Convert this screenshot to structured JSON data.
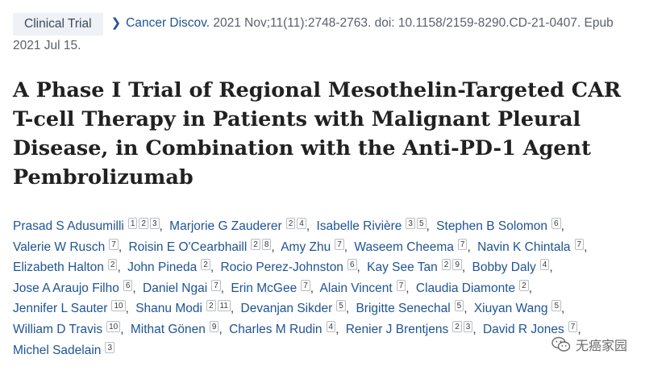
{
  "badge": "Clinical Trial",
  "journal": "Cancer Discov.",
  "citation": "2021 Nov;11(11):2748-2763. doi: 10.1158/2159-8290.CD-21-0407. Epub 2021 Jul 15.",
  "title": "A Phase I Trial of Regional Mesothelin-Targeted CAR T-cell Therapy in Patients with Malignant Pleural Disease, in Combination with the Anti-PD-1 Agent Pembrolizumab",
  "authors": [
    {
      "name": "Prasad S Adusumilli",
      "affs": [
        "1",
        "2",
        "3"
      ]
    },
    {
      "name": "Marjorie G Zauderer",
      "affs": [
        "2",
        "4"
      ]
    },
    {
      "name": "Isabelle Rivière",
      "affs": [
        "3",
        "5"
      ]
    },
    {
      "name": "Stephen B Solomon",
      "affs": [
        "6"
      ]
    },
    {
      "name": "Valerie W Rusch",
      "affs": [
        "7"
      ]
    },
    {
      "name": "Roisin E O'Cearbhaill",
      "affs": [
        "2",
        "8"
      ]
    },
    {
      "name": "Amy Zhu",
      "affs": [
        "7"
      ]
    },
    {
      "name": "Waseem Cheema",
      "affs": [
        "7"
      ]
    },
    {
      "name": "Navin K Chintala",
      "affs": [
        "7"
      ]
    },
    {
      "name": "Elizabeth Halton",
      "affs": [
        "2"
      ]
    },
    {
      "name": "John Pineda",
      "affs": [
        "2"
      ]
    },
    {
      "name": "Rocio Perez-Johnston",
      "affs": [
        "6"
      ]
    },
    {
      "name": "Kay See Tan",
      "affs": [
        "2",
        "9"
      ]
    },
    {
      "name": "Bobby Daly",
      "affs": [
        "4"
      ]
    },
    {
      "name": "Jose A Araujo Filho",
      "affs": [
        "6"
      ]
    },
    {
      "name": "Daniel Ngai",
      "affs": [
        "7"
      ]
    },
    {
      "name": "Erin McGee",
      "affs": [
        "7"
      ]
    },
    {
      "name": "Alain Vincent",
      "affs": [
        "7"
      ]
    },
    {
      "name": "Claudia Diamonte",
      "affs": [
        "2"
      ]
    },
    {
      "name": "Jennifer L Sauter",
      "affs": [
        "10"
      ]
    },
    {
      "name": "Shanu Modi",
      "affs": [
        "2",
        "11"
      ]
    },
    {
      "name": "Devanjan Sikder",
      "affs": [
        "5"
      ]
    },
    {
      "name": "Brigitte Senechal",
      "affs": [
        "5"
      ]
    },
    {
      "name": "Xiuyan Wang",
      "affs": [
        "5"
      ]
    },
    {
      "name": "William D Travis",
      "affs": [
        "10"
      ]
    },
    {
      "name": "Mithat Gönen",
      "affs": [
        "9"
      ]
    },
    {
      "name": "Charles M Rudin",
      "affs": [
        "4"
      ]
    },
    {
      "name": "Renier J Brentjens",
      "affs": [
        "2",
        "3"
      ]
    },
    {
      "name": "David R Jones",
      "affs": [
        "7"
      ]
    },
    {
      "name": "Michel Sadelain",
      "affs": [
        "3"
      ]
    }
  ],
  "watermark": "无癌家园",
  "watermark_icon": "wechat-icon",
  "colors": {
    "link": "#205493",
    "badge_bg": "#eef1f5"
  }
}
